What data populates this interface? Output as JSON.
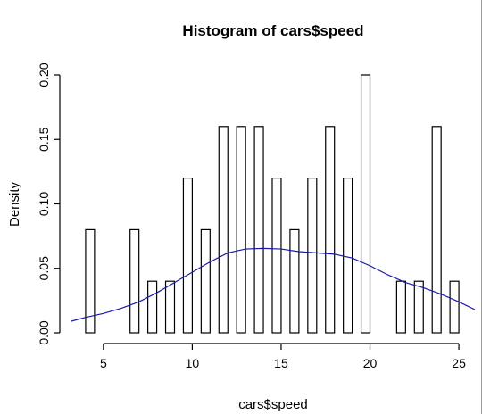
{
  "chart_data": {
    "type": "bar",
    "title": "Histogram of cars$speed",
    "xlabel": "cars$speed",
    "ylabel": "Density",
    "xlim": [
      3.2,
      25.9
    ],
    "ylim": [
      0,
      0.2
    ],
    "x_ticks": [
      5,
      10,
      15,
      20,
      25
    ],
    "y_ticks": [
      "0.00",
      "0.05",
      "0.10",
      "0.15",
      "0.20"
    ],
    "bin_width": 0.5,
    "bins": [
      {
        "start": 4.0,
        "end": 4.5,
        "density": 0.08
      },
      {
        "start": 6.5,
        "end": 7.0,
        "density": 0.08
      },
      {
        "start": 7.5,
        "end": 8.0,
        "density": 0.04
      },
      {
        "start": 8.5,
        "end": 9.0,
        "density": 0.04
      },
      {
        "start": 9.5,
        "end": 10.0,
        "density": 0.12
      },
      {
        "start": 10.5,
        "end": 11.0,
        "density": 0.08
      },
      {
        "start": 11.5,
        "end": 12.0,
        "density": 0.16
      },
      {
        "start": 12.5,
        "end": 13.0,
        "density": 0.16
      },
      {
        "start": 13.5,
        "end": 14.0,
        "density": 0.16
      },
      {
        "start": 14.5,
        "end": 15.0,
        "density": 0.12
      },
      {
        "start": 15.5,
        "end": 16.0,
        "density": 0.08
      },
      {
        "start": 16.5,
        "end": 17.0,
        "density": 0.12
      },
      {
        "start": 17.5,
        "end": 18.0,
        "density": 0.16
      },
      {
        "start": 18.5,
        "end": 19.0,
        "density": 0.12
      },
      {
        "start": 19.5,
        "end": 20.0,
        "density": 0.2
      },
      {
        "start": 21.5,
        "end": 22.0,
        "density": 0.04
      },
      {
        "start": 22.5,
        "end": 23.0,
        "density": 0.04
      },
      {
        "start": 23.5,
        "end": 24.0,
        "density": 0.16
      },
      {
        "start": 24.5,
        "end": 25.0,
        "density": 0.04
      }
    ],
    "density_curve": {
      "color": "#1a1aa8",
      "points": [
        [
          3.2,
          0.009
        ],
        [
          4.0,
          0.012
        ],
        [
          5.0,
          0.015
        ],
        [
          6.0,
          0.019
        ],
        [
          7.0,
          0.024
        ],
        [
          8.0,
          0.031
        ],
        [
          9.0,
          0.039
        ],
        [
          10.0,
          0.047
        ],
        [
          11.0,
          0.055
        ],
        [
          12.0,
          0.062
        ],
        [
          13.0,
          0.065
        ],
        [
          14.0,
          0.0655
        ],
        [
          15.0,
          0.065
        ],
        [
          16.0,
          0.063
        ],
        [
          17.0,
          0.062
        ],
        [
          18.0,
          0.061
        ],
        [
          19.0,
          0.058
        ],
        [
          20.0,
          0.052
        ],
        [
          21.0,
          0.045
        ],
        [
          22.0,
          0.039
        ],
        [
          23.0,
          0.035
        ],
        [
          24.0,
          0.03
        ],
        [
          25.0,
          0.024
        ],
        [
          25.9,
          0.018
        ]
      ]
    },
    "grid": false,
    "legend": "none"
  }
}
